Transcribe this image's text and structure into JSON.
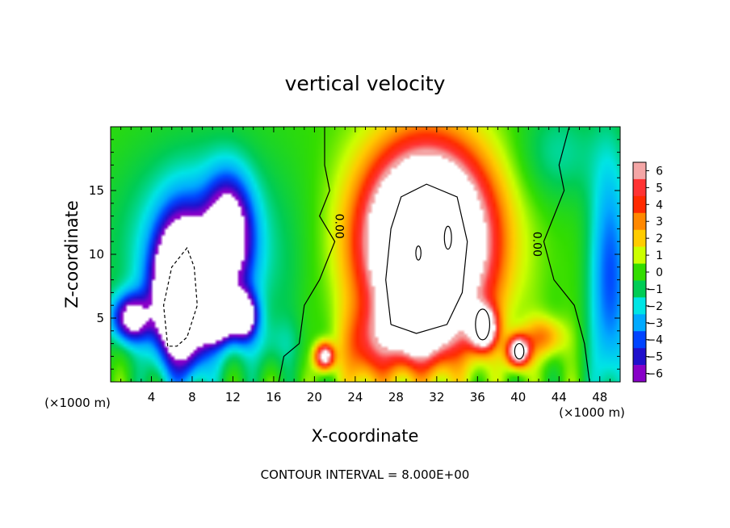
{
  "chart_data": {
    "type": "heatmap",
    "title": "vertical velocity",
    "xlabel": "X-coordinate",
    "ylabel": "Z-coordinate",
    "x_unit_label": "(×1000 m)",
    "x_unit_label_right": "(×1000 m)",
    "xlim": [
      0,
      50
    ],
    "ylim": [
      0,
      20
    ],
    "xticks": [
      4,
      8,
      12,
      16,
      20,
      24,
      28,
      32,
      36,
      40,
      44,
      48
    ],
    "yticks": [
      5,
      10,
      15
    ],
    "colorbar": {
      "ticks": [
        6,
        5,
        4,
        3,
        2,
        1,
        0,
        -1,
        -2,
        -3,
        -4,
        -5,
        -6
      ],
      "tick_labels": [
        "6",
        "5",
        "4",
        "3",
        "2",
        "1",
        "0",
        "−1",
        "−2",
        "−3",
        "−4",
        "−5",
        "−6"
      ],
      "range": [
        -6,
        6
      ],
      "colors": [
        "#f4a6a6",
        "#ff3333",
        "#ff2a00",
        "#ff8800",
        "#ffcc00",
        "#ccff00",
        "#33dd00",
        "#00cc55",
        "#00e5e5",
        "#00aaff",
        "#0044ff",
        "#1f10cc",
        "#8800c8"
      ]
    },
    "contour_label": "0.00",
    "contour_interval_text": "CONTOUR INTERVAL = 8.000E+00",
    "features": [
      {
        "kind": "updraft",
        "center": [
          31,
          11
        ],
        "peak": 18
      },
      {
        "kind": "updraft",
        "center": [
          36.5,
          4
        ],
        "peak": 10
      },
      {
        "kind": "updraft",
        "center": [
          40,
          2.5
        ],
        "peak": 9
      },
      {
        "kind": "updraft",
        "center": [
          21,
          2
        ],
        "peak": 8
      },
      {
        "kind": "downdraft",
        "center": [
          7,
          7
        ],
        "peak": -16
      },
      {
        "kind": "downdraft",
        "center": [
          11,
          5
        ],
        "peak": -9
      },
      {
        "kind": "downdraft",
        "center": [
          2,
          5
        ],
        "peak": -7
      }
    ],
    "grid": false
  }
}
